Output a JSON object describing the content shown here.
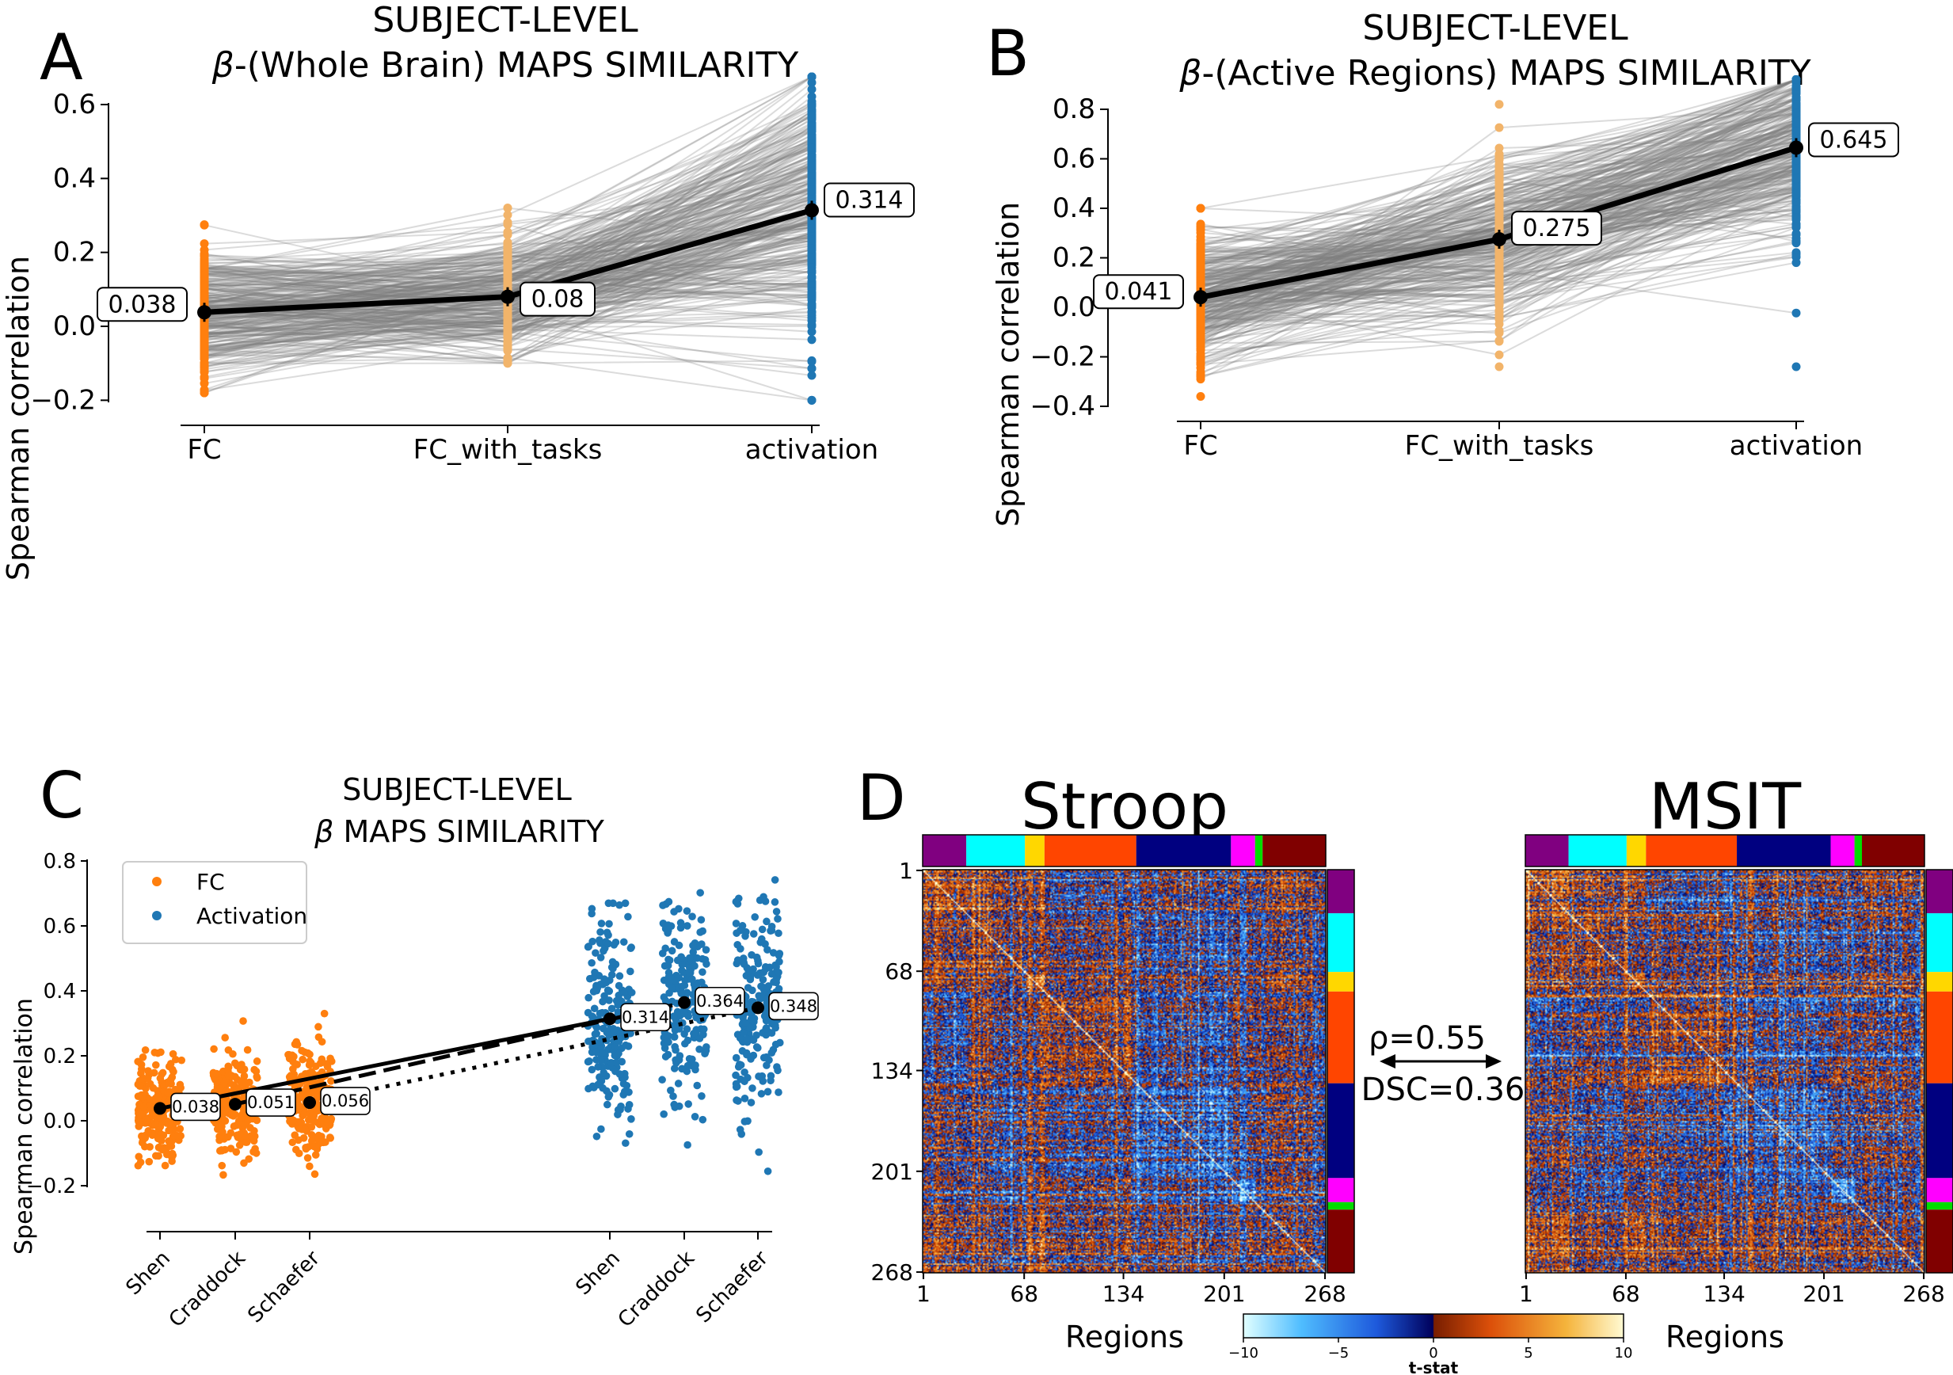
{
  "colors": {
    "fc": "#ff7f0e",
    "fc_light": "#f2b46a",
    "activation": "#1f77b4",
    "link": "#7f7f7f",
    "mean": "#000000"
  },
  "panels": {
    "A": {
      "letter": "A",
      "title_line1": "SUBJECT-LEVEL",
      "title_line2_symbol": "β",
      "title_line2_rest": "-(Whole Brain) MAPS SIMILARITY",
      "ylabel": "Spearman correlation",
      "ylim": [
        -0.215,
        0.685
      ],
      "yticks": [
        "−0.2",
        "0.0",
        "0.2",
        "0.4",
        "0.6"
      ],
      "ytick_values": [
        -0.2,
        0.0,
        0.2,
        0.4,
        0.6
      ],
      "categories": [
        "FC",
        "FC_with_tasks",
        "activation"
      ],
      "means": [
        0.038,
        0.08,
        0.314
      ],
      "mean_labels": [
        "0.038",
        "0.08",
        "0.314"
      ],
      "ranges": {
        "FC": [
          -0.18,
          0.275
        ],
        "FC_with_tasks": [
          -0.1,
          0.32
        ],
        "activation": [
          -0.2,
          0.675
        ]
      }
    },
    "B": {
      "letter": "B",
      "title_line1": "SUBJECT-LEVEL",
      "title_line2_symbol": "β",
      "title_line2_rest": "-(Active Regions) MAPS SIMILARITY",
      "ylabel": "Spearman correlation",
      "ylim": [
        -0.42,
        0.93
      ],
      "yticks": [
        "−0.4",
        "−0.2",
        "0.0",
        "0.2",
        "0.4",
        "0.6",
        "0.8"
      ],
      "ytick_values": [
        -0.4,
        -0.2,
        0.0,
        0.2,
        0.4,
        0.6,
        0.8
      ],
      "categories": [
        "FC",
        "FC_with_tasks",
        "activation"
      ],
      "means": [
        0.041,
        0.275,
        0.645
      ],
      "mean_labels": [
        "0.041",
        "0.275",
        "0.645"
      ],
      "ranges": {
        "FC": [
          -0.36,
          0.4
        ],
        "FC_with_tasks": [
          -0.24,
          0.82
        ],
        "activation": [
          -0.24,
          0.92
        ]
      }
    },
    "C": {
      "letter": "C",
      "title_line1": "SUBJECT-LEVEL",
      "title_line2_symbol": "β",
      "title_line2_rest": " MAPS SIMILARITY",
      "ylabel": "Spearman correlation",
      "ylim": [
        -0.25,
        0.8
      ],
      "yticks": [
        "−0.2",
        "0.0",
        "0.2",
        "0.4",
        "0.6",
        "0.8"
      ],
      "ytick_values": [
        -0.2,
        0.0,
        0.2,
        0.4,
        0.6,
        0.8
      ],
      "categories": [
        "Shen",
        "Craddock",
        "Schaefer",
        "Shen",
        "Craddock",
        "Schaefer"
      ],
      "legend": [
        {
          "label": "FC",
          "color": "#ff7f0e"
        },
        {
          "label": "Activation",
          "color": "#1f77b4"
        }
      ],
      "fc_means": [
        0.038,
        0.051,
        0.056
      ],
      "act_means": [
        0.314,
        0.364,
        0.348
      ],
      "fc_labels": [
        "0.038",
        "0.051",
        "0.056"
      ],
      "act_labels": [
        "0.314",
        "0.364",
        "0.348"
      ]
    },
    "D": {
      "letter": "D",
      "left_title": "Stroop",
      "right_title": "MSIT",
      "tick_labels": [
        "1",
        "68",
        "134",
        "201",
        "268"
      ],
      "xlabel": "Regions",
      "rho_text": "ρ=0.55",
      "dsc_text": "DSC=0.36",
      "colorbar_label": "t-stat",
      "colorbar_ticks": [
        "−10",
        "−5",
        "0",
        "5",
        "10"
      ],
      "network_colors": [
        "#800080",
        "#00ffff",
        "#ffd700",
        "#ff4500",
        "#000080",
        "#ff00ff",
        "#00dd00",
        "#800000"
      ],
      "network_bounds": [
        0,
        29,
        68,
        81,
        142,
        205,
        221,
        226,
        268
      ]
    }
  },
  "chart_data": [
    {
      "type": "scatter",
      "title": "SUBJECT-LEVEL β-(Whole Brain) MAPS SIMILARITY",
      "ylabel": "Spearman correlation",
      "categories": [
        "FC",
        "FC_with_tasks",
        "activation"
      ],
      "series": [
        {
          "name": "mean",
          "values": [
            0.038,
            0.08,
            0.314
          ]
        }
      ],
      "ylim": [
        -0.215,
        0.685
      ]
    },
    {
      "type": "scatter",
      "title": "SUBJECT-LEVEL β-(Active Regions) MAPS SIMILARITY",
      "ylabel": "Spearman correlation",
      "categories": [
        "FC",
        "FC_with_tasks",
        "activation"
      ],
      "series": [
        {
          "name": "mean",
          "values": [
            0.041,
            0.275,
            0.645
          ]
        }
      ],
      "ylim": [
        -0.42,
        0.93
      ]
    },
    {
      "type": "scatter",
      "title": "SUBJECT-LEVEL β MAPS SIMILARITY",
      "ylabel": "Spearman correlation",
      "categories": [
        "Shen",
        "Craddock",
        "Schaefer"
      ],
      "series": [
        {
          "name": "FC",
          "values": [
            0.038,
            0.051,
            0.056
          ]
        },
        {
          "name": "Activation",
          "values": [
            0.314,
            0.364,
            0.348
          ]
        }
      ],
      "ylim": [
        -0.25,
        0.8
      ],
      "legend": "top-left"
    },
    {
      "type": "heatmap",
      "titles": [
        "Stroop",
        "MSIT"
      ],
      "xlabel": "Regions",
      "ticks": [
        1,
        68,
        134,
        201,
        268
      ],
      "colorbar": {
        "label": "t-stat",
        "range": [
          -10,
          10
        ]
      },
      "annotation": {
        "rho": 0.55,
        "dsc": 0.36
      }
    }
  ]
}
